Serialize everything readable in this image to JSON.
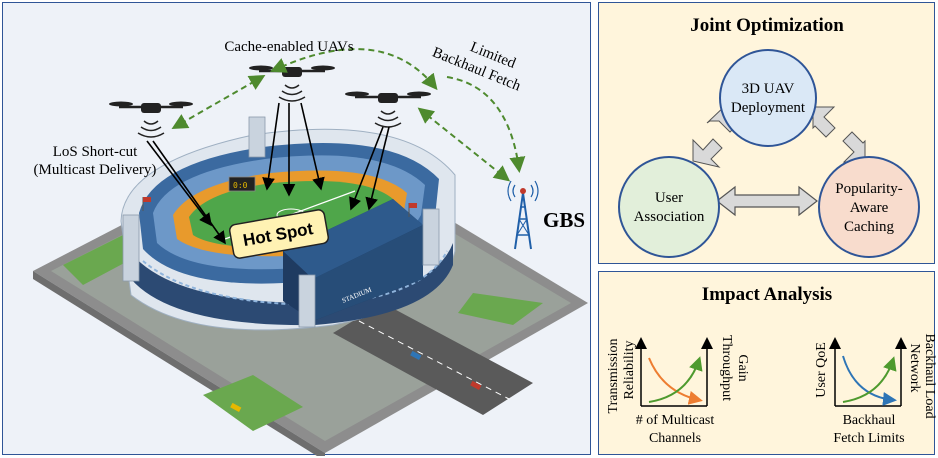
{
  "scene": {
    "uav_label": "Cache-enabled UAVs",
    "backhaul_label_line1": "Limited",
    "backhaul_label_line2": "Backhaul Fetch",
    "los_label_line1": "LoS Short-cut",
    "los_label_line2": "(Multicast Delivery)",
    "hotspot_label": "Hot Spot",
    "gbs_label": "GBS",
    "stadium_sign": "STADIUM"
  },
  "joint": {
    "title": "Joint Optimization",
    "node_top_line1": "3D UAV",
    "node_top_line2": "Deployment",
    "node_left_line1": "User",
    "node_left_line2": "Association",
    "node_right_line1": "Popularity-",
    "node_right_line2": "Aware",
    "node_right_line3": "Caching",
    "colors": {
      "top": "#dae8f6",
      "left": "#e2efda",
      "right": "#f8dccd",
      "outline": "#2f5597"
    }
  },
  "impact": {
    "title": "Impact Analysis",
    "chart1": {
      "ylabel_left_line1": "Transmission",
      "ylabel_left_line2": "Reliability",
      "ylabel_right_line1": "Throughput",
      "ylabel_right_line2": "Gain",
      "xlabel_line1": "# of Multicast",
      "xlabel_line2": "Channels"
    },
    "chart2": {
      "ylabel_left": "User QoE",
      "ylabel_right_line1": "Network",
      "ylabel_right_line2": "Backhaul Load",
      "xlabel_line1": "Backhaul",
      "xlabel_line2": "Fetch Limits"
    },
    "colors": {
      "decreasing": "#ed7d31",
      "increasing": "#4e9a2e",
      "decreasing2": "#2e75b6"
    }
  }
}
